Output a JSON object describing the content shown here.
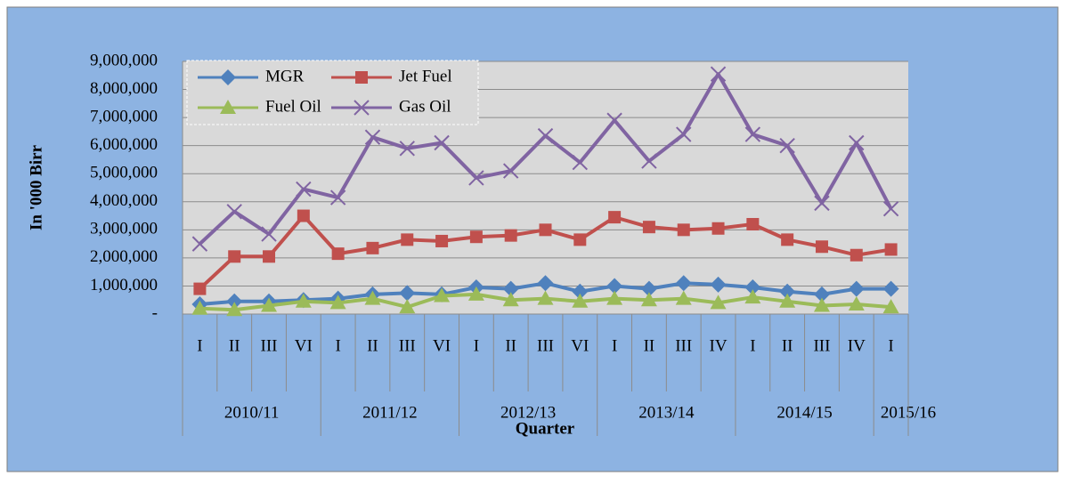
{
  "chart_data": {
    "type": "line",
    "y_label": "In '000 Birr",
    "x_label": "Quarter",
    "groups": [
      {
        "label": "2010/11",
        "categories": [
          "I",
          "II",
          "III",
          "VI"
        ]
      },
      {
        "label": "2011/12",
        "categories": [
          "I",
          "II",
          "III",
          "VI"
        ]
      },
      {
        "label": "2012/13",
        "categories": [
          "I",
          "II",
          "III",
          "VI"
        ]
      },
      {
        "label": "2013/14",
        "categories": [
          "I",
          "II",
          "III",
          "IV"
        ]
      },
      {
        "label": "2014/15",
        "categories": [
          "I",
          "II",
          "III",
          "IV"
        ]
      },
      {
        "label": "2015/16",
        "categories": [
          "I"
        ]
      }
    ],
    "series": [
      {
        "name": "MGR",
        "color": "#4f81bd",
        "marker": "diamond",
        "values": [
          350000,
          450000,
          450000,
          500000,
          550000,
          700000,
          750000,
          700000,
          950000,
          900000,
          1100000,
          800000,
          1000000,
          900000,
          1100000,
          1050000,
          950000,
          800000,
          700000,
          900000,
          900000
        ]
      },
      {
        "name": "Jet Fuel",
        "color": "#c0504d",
        "marker": "square",
        "values": [
          900000,
          2050000,
          2050000,
          3500000,
          2150000,
          2350000,
          2650000,
          2600000,
          2750000,
          2800000,
          3000000,
          2650000,
          3450000,
          3100000,
          3000000,
          3050000,
          3200000,
          2650000,
          2400000,
          2100000,
          2300000
        ]
      },
      {
        "name": "Fuel Oil",
        "color": "#9bbb59",
        "marker": "triangle",
        "values": [
          200000,
          150000,
          300000,
          450000,
          400000,
          550000,
          250000,
          650000,
          700000,
          500000,
          550000,
          450000,
          550000,
          500000,
          550000,
          400000,
          600000,
          450000,
          300000,
          350000,
          250000
        ]
      },
      {
        "name": "Gas Oil",
        "color": "#8064a2",
        "marker": "x",
        "values": [
          2500000,
          3650000,
          2850000,
          4450000,
          4150000,
          6300000,
          5900000,
          6100000,
          4850000,
          5100000,
          6350000,
          5400000,
          6900000,
          5450000,
          6400000,
          8550000,
          6400000,
          6000000,
          3950000,
          6100000,
          3750000
        ]
      }
    ],
    "ylim": [
      0,
      9000000
    ],
    "yticks": [
      {
        "value": 0,
        "label": "-"
      },
      {
        "value": 1000000,
        "label": "1,000,000"
      },
      {
        "value": 2000000,
        "label": "2,000,000"
      },
      {
        "value": 3000000,
        "label": "3,000,000"
      },
      {
        "value": 4000000,
        "label": "4,000,000"
      },
      {
        "value": 5000000,
        "label": "5,000,000"
      },
      {
        "value": 6000000,
        "label": "6,000,000"
      },
      {
        "value": 7000000,
        "label": "7,000,000"
      },
      {
        "value": 8000000,
        "label": "8,000,000"
      },
      {
        "value": 9000000,
        "label": "9,000,000"
      }
    ],
    "grid": true,
    "legend": "top-left"
  }
}
